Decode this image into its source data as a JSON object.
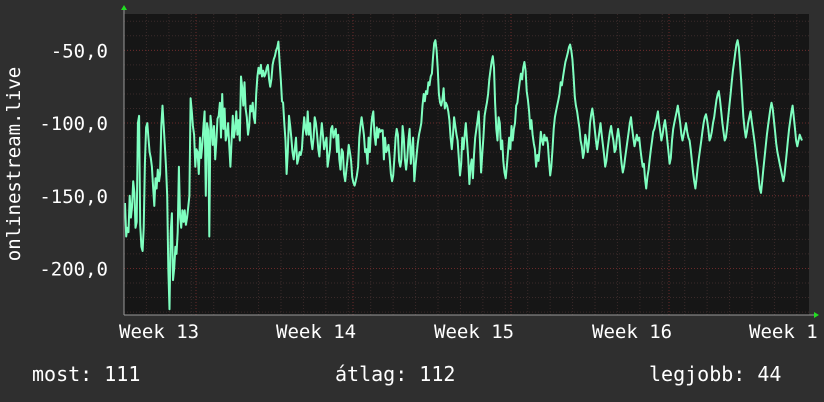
{
  "chart_data": {
    "type": "line",
    "ylabel": "onlinestream.live",
    "xlabel": "",
    "x_ticks": [
      "Week 13",
      "Week 14",
      "Week 15",
      "Week 16",
      "Week 1"
    ],
    "y_ticks": [
      "-50,0",
      "-100,0",
      "-150,0",
      "-200,0"
    ],
    "y_tick_values": [
      -50,
      -100,
      -150,
      -200
    ],
    "ylim": [
      -232,
      -25
    ],
    "grid": true,
    "colors": {
      "background": "#2f2f2f",
      "plot": "#161616",
      "line": "#7fffc0",
      "minor_grid": "#3a2a2a",
      "major_grid": "#6a2a2a",
      "axis_arrow": "#22dd22"
    },
    "series": [
      {
        "values": [
          -155,
          -178,
          -172,
          -175,
          -150,
          -165,
          -158,
          -140,
          -148,
          -172,
          -168,
          -100,
          -95,
          -170,
          -185,
          -188,
          -172,
          -128,
          -103,
          -100,
          -110,
          -120,
          -124,
          -130,
          -144,
          -157,
          -138,
          -145,
          -132,
          -140,
          -135,
          -102,
          -88,
          -102,
          -115,
          -130,
          -150,
          -200,
          -228,
          -175,
          -162,
          -208,
          -200,
          -185,
          -190,
          -175,
          -130,
          -165,
          -172,
          -160,
          -168,
          -160,
          -170,
          -165,
          -158,
          -150,
          -83,
          -92,
          -102,
          -108,
          -130,
          -118,
          -120,
          -135,
          -110,
          -124,
          -115,
          -102,
          -92,
          -150,
          -100,
          -105,
          -178,
          -95,
          -104,
          -115,
          -102,
          -125,
          -112,
          -97,
          -95,
          -86,
          -110,
          -80,
          -104,
          -90,
          -112,
          -108,
          -100,
          -115,
          -130,
          -112,
          -95,
          -110,
          -104,
          -92,
          -108,
          -98,
          -112,
          -68,
          -75,
          -88,
          -72,
          -90,
          -96,
          -108,
          -102,
          -88,
          -92,
          -86,
          -96,
          -100,
          -80,
          -68,
          -62,
          -66,
          -60,
          -68,
          -64,
          -68,
          -66,
          -62,
          -60,
          -70,
          -75,
          -70,
          -60,
          -56,
          -54,
          -50,
          -48,
          -44,
          -58,
          -70,
          -85,
          -86,
          -100,
          -112,
          -135,
          -120,
          -95,
          -102,
          -110,
          -120,
          -125,
          -118,
          -110,
          -128,
          -125,
          -120,
          -122,
          -118,
          -106,
          -96,
          -104,
          -108,
          -92,
          -108,
          -100,
          -112,
          -118,
          -110,
          -96,
          -100,
          -108,
          -118,
          -123,
          -110,
          -100,
          -108,
          -118,
          -114,
          -110,
          -130,
          -124,
          -118,
          -104,
          -102,
          -110,
          -106,
          -104,
          -120,
          -108,
          -125,
          -132,
          -118,
          -120,
          -135,
          -140,
          -132,
          -125,
          -115,
          -120,
          -126,
          -137,
          -141,
          -143,
          -140,
          -136,
          -130,
          -110,
          -102,
          -96,
          -102,
          -108,
          -120,
          -118,
          -128,
          -110,
          -120,
          -104,
          -96,
          -92,
          -108,
          -115,
          -103,
          -110,
          -104,
          -106,
          -105,
          -105,
          -125,
          -110,
          -120,
          -118,
          -115,
          -124,
          -135,
          -140,
          -136,
          -124,
          -110,
          -104,
          -108,
          -126,
          -130,
          -125,
          -102,
          -110,
          -125,
          -132,
          -124,
          -112,
          -104,
          -128,
          -118,
          -110,
          -140,
          -130,
          -122,
          -114,
          -108,
          -104,
          -100,
          -88,
          -80,
          -85,
          -78,
          -80,
          -72,
          -74,
          -68,
          -66,
          -55,
          -45,
          -43,
          -50,
          -62,
          -80,
          -86,
          -88,
          -84,
          -76,
          -90,
          -86,
          -88,
          -92,
          -98,
          -110,
          -118,
          -108,
          -96,
          -102,
          -108,
          -112,
          -124,
          -136,
          -128,
          -110,
          -118,
          -108,
          -100,
          -112,
          -124,
          -142,
          -130,
          -125,
          -138,
          -122,
          -110,
          -104,
          -98,
          -92,
          -112,
          -134,
          -122,
          -110,
          -95,
          -90,
          -86,
          -80,
          -70,
          -64,
          -58,
          -54,
          -62,
          -86,
          -104,
          -112,
          -96,
          -100,
          -118,
          -112,
          -126,
          -134,
          -138,
          -130,
          -120,
          -110,
          -118,
          -102,
          -112,
          -104,
          -100,
          -88,
          -86,
          -78,
          -72,
          -66,
          -70,
          -62,
          -58,
          -64,
          -78,
          -84,
          -92,
          -104,
          -98,
          -108,
          -114,
          -118,
          -130,
          -122,
          -126,
          -118,
          -106,
          -112,
          -115,
          -108,
          -112,
          -110,
          -114,
          -126,
          -136,
          -130,
          -118,
          -104,
          -96,
          -92,
          -88,
          -84,
          -80,
          -72,
          -74,
          -68,
          -63,
          -58,
          -55,
          -52,
          -48,
          -46,
          -50,
          -56,
          -68,
          -82,
          -88,
          -92,
          -98,
          -104,
          -112,
          -116,
          -124,
          -120,
          -108,
          -112,
          -120,
          -114,
          -100,
          -94,
          -90,
          -96,
          -104,
          -112,
          -118,
          -112,
          -106,
          -100,
          -108,
          -115,
          -122,
          -130,
          -126,
          -118,
          -112,
          -106,
          -102,
          -108,
          -112,
          -120,
          -118,
          -110,
          -104,
          -110,
          -120,
          -128,
          -134,
          -130,
          -124,
          -118,
          -112,
          -106,
          -100,
          -96,
          -104,
          -110,
          -116,
          -112,
          -108,
          -112,
          -110,
          -118,
          -124,
          -130,
          -128,
          -138,
          -145,
          -137,
          -132,
          -125,
          -118,
          -112,
          -106,
          -104,
          -100,
          -96,
          -92,
          -100,
          -106,
          -112,
          -108,
          -102,
          -98,
          -104,
          -112,
          -120,
          -128,
          -124,
          -112,
          -104,
          -100,
          -96,
          -92,
          -88,
          -94,
          -100,
          -108,
          -112,
          -108,
          -104,
          -100,
          -106,
          -110,
          -112,
          -118,
          -126,
          -134,
          -140,
          -145,
          -138,
          -130,
          -124,
          -118,
          -112,
          -106,
          -100,
          -96,
          -94,
          -98,
          -104,
          -112,
          -110,
          -106,
          -100,
          -96,
          -90,
          -84,
          -80,
          -78,
          -84,
          -92,
          -100,
          -106,
          -112,
          -110,
          -104,
          -96,
          -88,
          -80,
          -72,
          -64,
          -58,
          -52,
          -46,
          -43,
          -48,
          -58,
          -70,
          -84,
          -96,
          -104,
          -110,
          -106,
          -100,
          -96,
          -92,
          -98,
          -104,
          -110,
          -116,
          -124,
          -130,
          -138,
          -145,
          -148,
          -140,
          -132,
          -124,
          -116,
          -108,
          -102,
          -96,
          -90,
          -86,
          -90,
          -98,
          -106,
          -114,
          -120,
          -124,
          -128,
          -132,
          -136,
          -140,
          -136,
          -128,
          -120,
          -112,
          -104,
          -98,
          -92,
          -88,
          -96,
          -104,
          -112,
          -116,
          -112,
          -108,
          -110,
          -112
        ]
      }
    ]
  },
  "footer": {
    "current": "most: 111",
    "average": "átlag: 112",
    "best": "legjobb: 44"
  }
}
